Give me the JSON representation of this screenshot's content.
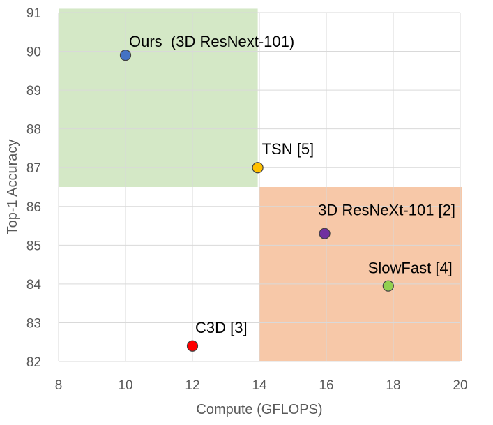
{
  "chart_data": {
    "type": "scatter",
    "xlabel": "Compute (GFLOPS)",
    "ylabel": "Top-1 Accuracy",
    "xlim": [
      8,
      20
    ],
    "ylim": [
      82,
      91
    ],
    "xticks": [
      8,
      10,
      12,
      14,
      16,
      18,
      20
    ],
    "yticks": [
      82,
      83,
      84,
      85,
      86,
      87,
      88,
      89,
      90,
      91
    ],
    "grid": true,
    "points": [
      {
        "label": "Ours  (3D ResNext-101)",
        "x": 10.0,
        "y": 89.9,
        "color": "#4472C4"
      },
      {
        "label": "TSN [5]",
        "x": 13.95,
        "y": 87.0,
        "color": "#FFC000"
      },
      {
        "label": "3D ResNeXt-101 [2]",
        "x": 15.95,
        "y": 85.3,
        "color": "#7030A0"
      },
      {
        "label": "SlowFast [4]",
        "x": 17.85,
        "y": 83.95,
        "color": "#92D050"
      },
      {
        "label": "C3D [3]",
        "x": 12.0,
        "y": 82.4,
        "color": "#FF0000"
      }
    ],
    "regions": [
      {
        "name": "favorable",
        "x0": 8.0,
        "x1": 13.95,
        "y0": 86.5,
        "y1": 91.1,
        "color": "#A9D18E"
      },
      {
        "name": "unfavorable",
        "x0": 14.0,
        "x1": 20.05,
        "y0": 82.0,
        "y1": 86.5,
        "color": "#F4B183"
      }
    ]
  }
}
